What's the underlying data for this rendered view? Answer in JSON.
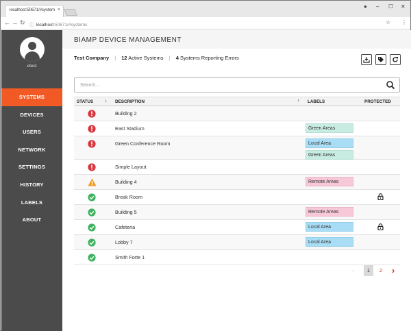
{
  "browser": {
    "tab_title": "localhost:50671/#system",
    "url_host": "localhost",
    "url_path": ":50671/#systems"
  },
  "user": {
    "name": "etest"
  },
  "nav": [
    {
      "label": "SYSTEMS",
      "active": true
    },
    {
      "label": "DEVICES",
      "active": false
    },
    {
      "label": "USERS",
      "active": false
    },
    {
      "label": "NETWORK",
      "active": false
    },
    {
      "label": "SETTINGS",
      "active": false
    },
    {
      "label": "HISTORY",
      "active": false
    },
    {
      "label": "LABELS",
      "active": false
    },
    {
      "label": "ABOUT",
      "active": false
    }
  ],
  "header": {
    "title": "BIAMP DEVICE MANAGEMENT"
  },
  "summary": {
    "company": "Test Company",
    "active_count": "12",
    "active_label": "Active Systems",
    "error_count": "4",
    "error_label": "Systems Reporting Errors"
  },
  "search": {
    "placeholder": "Search..."
  },
  "table": {
    "headers": {
      "status": "STATUS",
      "description": "DESCRIPTION",
      "labels": "LABELS",
      "protected": "PROTECTED"
    },
    "rows": [
      {
        "status": "error",
        "description": "Building 2",
        "labels": [],
        "protected": false
      },
      {
        "status": "error",
        "description": "East Stadium",
        "labels": [
          {
            "text": "Green Areas",
            "color": "green"
          }
        ],
        "protected": false
      },
      {
        "status": "error",
        "description": "Green Conference Room",
        "labels": [
          {
            "text": "Local Area",
            "color": "blue"
          },
          {
            "text": "Green Areas",
            "color": "green"
          }
        ],
        "protected": false
      },
      {
        "status": "error",
        "description": "Simple Layout",
        "labels": [],
        "protected": false
      },
      {
        "status": "warning",
        "description": "Building 4",
        "labels": [
          {
            "text": "Remote Areas",
            "color": "pink"
          }
        ],
        "protected": false
      },
      {
        "status": "ok",
        "description": "Break Room",
        "labels": [],
        "protected": true
      },
      {
        "status": "ok",
        "description": "Building 5",
        "labels": [
          {
            "text": "Remote Areas",
            "color": "pink"
          }
        ],
        "protected": false
      },
      {
        "status": "ok",
        "description": "Cafeteria",
        "labels": [
          {
            "text": "Local Area",
            "color": "blue"
          }
        ],
        "protected": true
      },
      {
        "status": "ok",
        "description": "Lobby 7",
        "labels": [
          {
            "text": "Local Area",
            "color": "blue"
          }
        ],
        "protected": false
      },
      {
        "status": "ok",
        "description": "Smith Forte 1",
        "labels": [],
        "protected": false
      }
    ]
  },
  "pagination": {
    "pages": [
      "1",
      "2"
    ],
    "current": "1"
  },
  "colors": {
    "accent": "#f15a24",
    "sidebar": "#4b4b4b",
    "error": "#d9363e",
    "warning": "#f39c1f",
    "ok": "#3fb35f"
  }
}
